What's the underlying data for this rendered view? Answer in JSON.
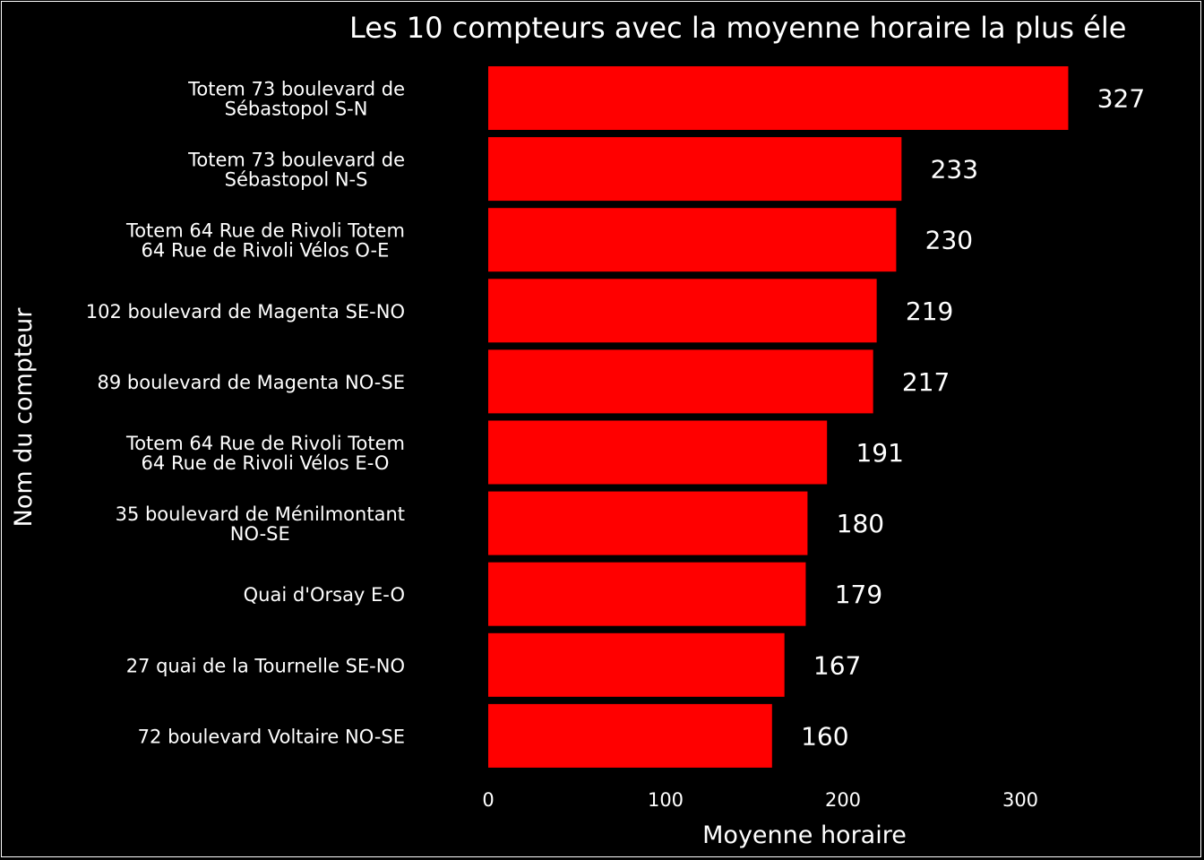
{
  "chart_data": {
    "type": "bar",
    "orientation": "horizontal",
    "title": "Les 10 compteurs avec la moyenne horaire la plus éle",
    "xlabel": "Moyenne horaire",
    "ylabel": "Nom du compteur",
    "categories": [
      [
        "Totem 73 boulevard de",
        "Sébastopol S-N"
      ],
      [
        "Totem 73 boulevard de",
        "Sébastopol N-S"
      ],
      [
        "Totem 64 Rue de Rivoli Totem",
        "64 Rue de Rivoli Vélos O-E"
      ],
      [
        "102 boulevard de Magenta SE-NO"
      ],
      [
        "89 boulevard de Magenta NO-SE"
      ],
      [
        "Totem 64 Rue de Rivoli Totem",
        "64 Rue de Rivoli Vélos E-O"
      ],
      [
        "35 boulevard de Ménilmontant",
        "NO-SE"
      ],
      [
        "Quai d'Orsay E-O"
      ],
      [
        "27 quai de la Tournelle SE-NO"
      ],
      [
        "72 boulevard Voltaire NO-SE"
      ]
    ],
    "values": [
      327,
      233,
      230,
      219,
      217,
      191,
      180,
      179,
      167,
      160
    ],
    "data_labels": [
      "327",
      "233",
      "230",
      "219",
      "217",
      "191",
      "180",
      "179",
      "167",
      "160"
    ],
    "xticks": [
      0,
      100,
      200,
      300
    ],
    "xlim": [
      0,
      380
    ],
    "grid": false,
    "colors": {
      "bar": "#ff0000",
      "background": "#000000",
      "text": "#ffffff"
    }
  }
}
